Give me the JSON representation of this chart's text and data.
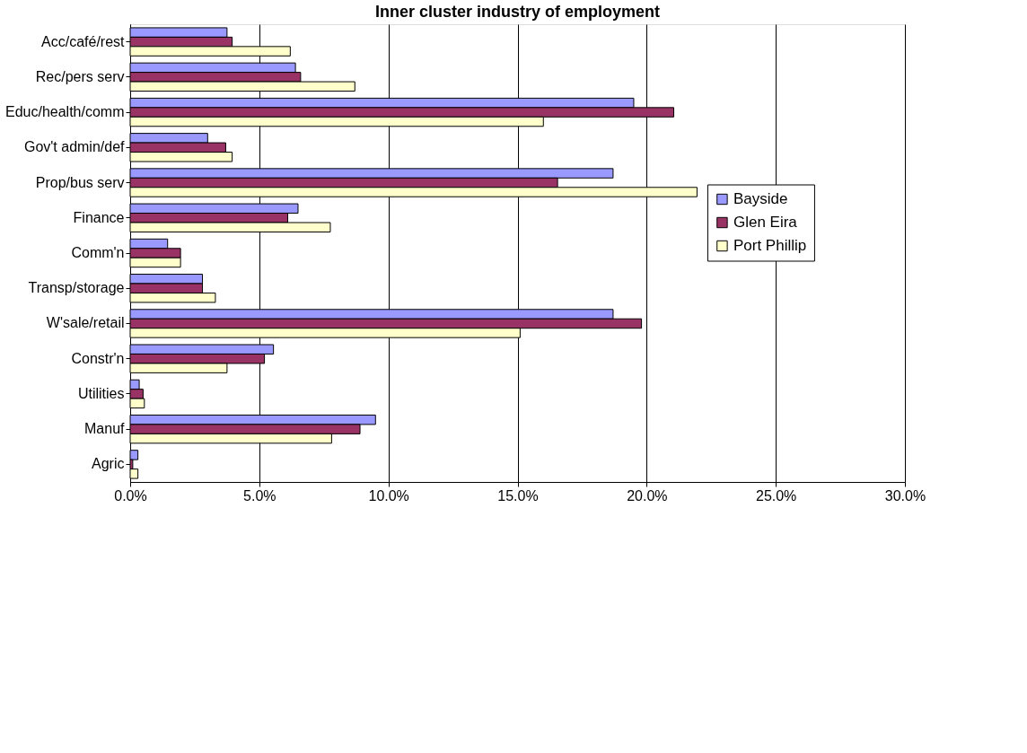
{
  "chart_data": {
    "type": "bar",
    "orientation": "horizontal",
    "title": "Inner cluster industry of employment",
    "categories": [
      "Acc/café/rest",
      "Rec/pers serv",
      "Educ/health/comm",
      "Gov't admin/def",
      "Prop/bus serv",
      "Finance",
      "Comm'n",
      "Transp/storage",
      "W'sale/retail",
      "Constr'n",
      "Utilities",
      "Manuf",
      "Agric"
    ],
    "series": [
      {
        "name": "Bayside",
        "color": "#9999ff",
        "values": [
          3.75,
          6.4,
          19.5,
          3.0,
          18.7,
          6.5,
          1.45,
          2.8,
          18.7,
          5.55,
          0.35,
          9.5,
          0.3
        ]
      },
      {
        "name": "Glen Eira",
        "color": "#993366",
        "values": [
          3.95,
          6.6,
          21.05,
          3.7,
          16.55,
          6.1,
          1.95,
          2.8,
          19.8,
          5.2,
          0.5,
          8.9,
          0.1
        ]
      },
      {
        "name": "Port Phillip",
        "color": "#ffffcc",
        "values": [
          6.2,
          8.7,
          16.0,
          3.95,
          21.95,
          7.75,
          1.95,
          3.3,
          15.1,
          3.75,
          0.55,
          7.8,
          0.3
        ]
      }
    ],
    "xlim": [
      0,
      30
    ],
    "xticks": [
      {
        "value": 0,
        "label": "0.0%"
      },
      {
        "value": 5,
        "label": "5.0%"
      },
      {
        "value": 10,
        "label": "10.0%"
      },
      {
        "value": 15,
        "label": "15.0%"
      },
      {
        "value": 20,
        "label": "20.0%"
      },
      {
        "value": 25,
        "label": "25.0%"
      },
      {
        "value": 30,
        "label": "30.0%"
      }
    ],
    "grid": "x",
    "legend": "right"
  }
}
